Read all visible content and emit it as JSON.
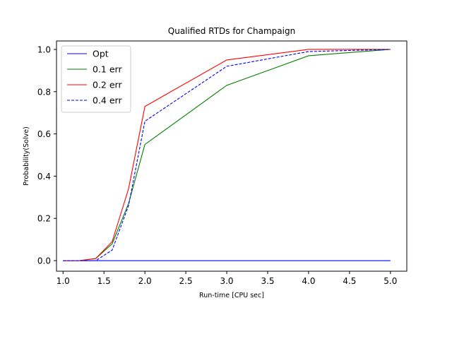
{
  "chart_data": {
    "type": "line",
    "title": "Qualified RTDs for Champaign",
    "xlabel": "Run-time [CPU sec]",
    "ylabel": "Probability(Solve)",
    "xlim": [
      0.92,
      5.2
    ],
    "ylim": [
      -0.05,
      1.04
    ],
    "xticks": [
      1.0,
      1.5,
      2.0,
      2.5,
      3.0,
      3.5,
      4.0,
      4.5,
      5.0
    ],
    "xtick_labels": [
      "1.0",
      "1.5",
      "2.0",
      "2.5",
      "3.0",
      "3.5",
      "4.0",
      "4.5",
      "5.0"
    ],
    "yticks": [
      0.0,
      0.2,
      0.4,
      0.6,
      0.8,
      1.0
    ],
    "ytick_labels": [
      "0.0",
      "0.2",
      "0.4",
      "0.6",
      "0.8",
      "1.0"
    ],
    "grid": false,
    "legend_position": "top-left",
    "series": [
      {
        "name": "Opt",
        "color": "#0000ff",
        "style": "solid",
        "x": [
          1.0,
          1.2,
          1.4,
          1.6,
          1.8,
          2.0,
          3.0,
          4.0,
          5.0
        ],
        "y": [
          0.0,
          0.0,
          0.0,
          0.0,
          0.0,
          0.0,
          0.0,
          0.0,
          0.0
        ]
      },
      {
        "name": "0.1 err",
        "color": "#008000",
        "style": "solid",
        "x": [
          1.0,
          1.2,
          1.4,
          1.6,
          1.8,
          2.0,
          3.0,
          4.0,
          5.0
        ],
        "y": [
          0.0,
          0.0,
          0.01,
          0.08,
          0.27,
          0.55,
          0.83,
          0.97,
          1.0
        ]
      },
      {
        "name": "0.2 err",
        "color": "#ff0000",
        "style": "solid",
        "x": [
          1.0,
          1.2,
          1.4,
          1.6,
          1.8,
          2.0,
          3.0,
          4.0,
          5.0
        ],
        "y": [
          0.0,
          0.0,
          0.01,
          0.09,
          0.34,
          0.73,
          0.95,
          1.0,
          1.0
        ]
      },
      {
        "name": "0.4 err",
        "color": "#0000ff",
        "style": "dashed",
        "x": [
          1.0,
          1.2,
          1.4,
          1.6,
          1.8,
          2.0,
          3.0,
          4.0,
          5.0
        ],
        "y": [
          0.0,
          0.0,
          0.0,
          0.05,
          0.26,
          0.66,
          0.92,
          0.99,
          1.0
        ]
      }
    ]
  }
}
